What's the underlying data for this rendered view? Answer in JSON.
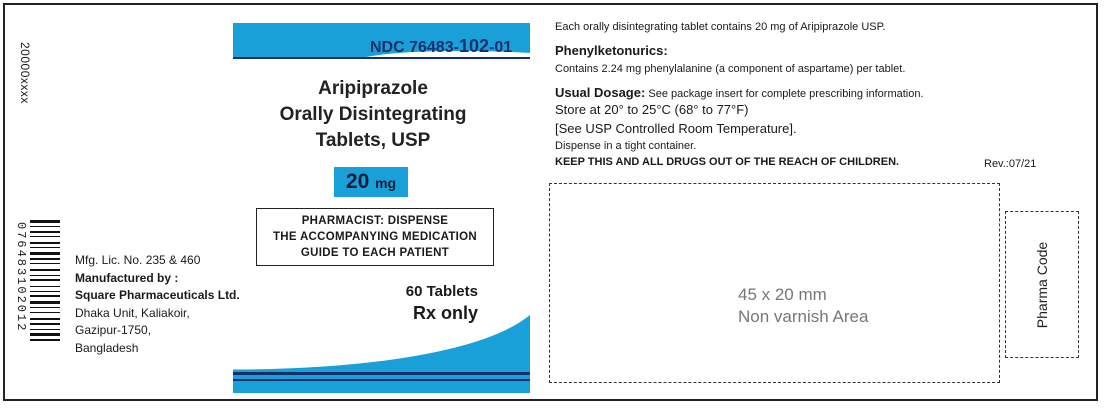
{
  "colors": {
    "accent": "#1aa0d8",
    "navy": "#152f6a",
    "text": "#1a1a1a"
  },
  "side_code": "20000xxxx",
  "barcode": {
    "digits": "076483102012"
  },
  "manufacturer": {
    "license": "Mfg. Lic. No. 235 & 460",
    "label": "Manufactured by :",
    "name": "Square Pharmaceuticals Ltd.",
    "address_line1": "Dhaka Unit, Kaliakoir,",
    "address_line2": "Gazipur-1750,",
    "country": "Bangladesh"
  },
  "ndc": {
    "prefix": "NDC 76483-",
    "product": "102",
    "suffix": "-01"
  },
  "product": {
    "line1": "Aripiprazole",
    "line2": "Orally Disintegrating",
    "line3": "Tablets, USP",
    "strength_value": "20",
    "strength_unit": "mg"
  },
  "pharmacist": {
    "line1": "PHARMACIST: DISPENSE",
    "line2": "THE ACCOMPANYING MEDICATION",
    "line3": "GUIDE TO EACH PATIENT"
  },
  "count": "60 Tablets",
  "rx": "Rx only",
  "info": {
    "contents": "Each orally disintegrating tablet contains 20 mg of Aripiprazole USP.",
    "pku_heading": "Phenylketonurics:",
    "pku_text": "Contains 2.24 mg phenylalanine (a component of aspartame) per tablet.",
    "dosage_heading": "Usual Dosage:",
    "dosage_text": "See package insert for complete prescribing information.",
    "storage": "Store at 20° to 25°C (68° to 77°F)",
    "usp_storage": "[See USP Controlled Room Temperature].",
    "dispense": "Dispense in a tight container.",
    "warning": "KEEP THIS AND ALL DRUGS OUT OF THE REACH OF CHILDREN.",
    "revision": "Rev.:07/21"
  },
  "nonvarnish": {
    "size": "45 x 20 mm",
    "label": "Non varnish Area"
  },
  "pharma_code": "Pharma Code"
}
